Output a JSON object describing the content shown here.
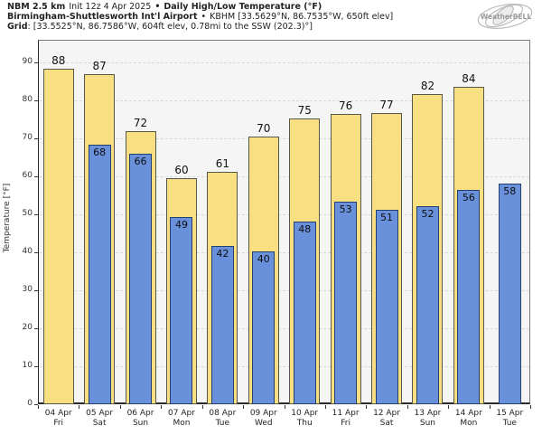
{
  "header": {
    "model": "NBM 2.5 km",
    "init": "Init 12z 4 Apr 2025",
    "bullet": "•",
    "product": "Daily High/Low Temperature (°F)",
    "station_name": "Birmingham-Shuttlesworth Int'l Airport",
    "station_meta": "KBHM [33.5629°N, 86.7535°W, 650ft elev]",
    "grid_label": "Grid",
    "grid_meta": ": [33.5525°N, 86.7586°W, 604ft elev, 0.78mi to the SSW (202.3)°]",
    "logo_text": "WeatherBELL"
  },
  "chart_data": {
    "type": "bar",
    "title": "Daily High/Low Temperature (°F)",
    "ylabel": "Temperature [°F]",
    "ylim": [
      0,
      96
    ],
    "yticks": [
      0,
      10,
      20,
      30,
      40,
      50,
      60,
      70,
      80,
      90
    ],
    "grid": "horizontal-dashed",
    "legend": "none",
    "colors": {
      "high_fill": "#f8df82",
      "high_edge": "#56564a",
      "low_fill": "#6990db",
      "low_edge": "#24406e",
      "plot_background": "#f5f5f5",
      "gridline": "#d9d9d9"
    },
    "categories": [
      "04 Apr Fri",
      "05 Apr Sat",
      "06 Apr Sun",
      "07 Apr Mon",
      "08 Apr Tue",
      "09 Apr Wed",
      "10 Apr Thu",
      "11 Apr Fri",
      "12 Apr Sat",
      "13 Apr Sun",
      "14 Apr Mon",
      "15 Apr Tue"
    ],
    "series": [
      {
        "name": "High",
        "values": [
          88,
          87,
          72,
          60,
          61,
          70,
          75,
          76,
          77,
          82,
          84,
          null
        ]
      },
      {
        "name": "Low",
        "values": [
          null,
          68,
          66,
          49,
          42,
          40,
          48,
          53,
          51,
          52,
          56,
          58
        ]
      }
    ],
    "days": [
      {
        "date": "04 Apr",
        "day": "Fri",
        "high": 88,
        "low": null,
        "high_bar": 88.3,
        "low_bar": null
      },
      {
        "date": "05 Apr",
        "day": "Sat",
        "high": 87,
        "low": 68,
        "high_bar": 87.0,
        "low_bar": 68.3
      },
      {
        "date": "06 Apr",
        "day": "Sun",
        "high": 72,
        "low": 66,
        "high_bar": 72.0,
        "low_bar": 66.0
      },
      {
        "date": "07 Apr",
        "day": "Mon",
        "high": 60,
        "low": 49,
        "high_bar": 59.6,
        "low_bar": 49.3
      },
      {
        "date": "08 Apr",
        "day": "Tue",
        "high": 61,
        "low": 42,
        "high_bar": 61.3,
        "low_bar": 41.7
      },
      {
        "date": "09 Apr",
        "day": "Wed",
        "high": 70,
        "low": 40,
        "high_bar": 70.4,
        "low_bar": 40.3
      },
      {
        "date": "10 Apr",
        "day": "Thu",
        "high": 75,
        "low": 48,
        "high_bar": 75.3,
        "low_bar": 48.1
      },
      {
        "date": "11 Apr",
        "day": "Fri",
        "high": 76,
        "low": 53,
        "high_bar": 76.5,
        "low_bar": 53.3
      },
      {
        "date": "12 Apr",
        "day": "Sat",
        "high": 77,
        "low": 51,
        "high_bar": 76.6,
        "low_bar": 51.3
      },
      {
        "date": "13 Apr",
        "day": "Sun",
        "high": 82,
        "low": 52,
        "high_bar": 81.8,
        "low_bar": 52.2
      },
      {
        "date": "14 Apr",
        "day": "Mon",
        "high": 84,
        "low": 56,
        "high_bar": 83.5,
        "low_bar": 56.4
      },
      {
        "date": "15 Apr",
        "day": "Tue",
        "high": null,
        "low": 58,
        "high_bar": null,
        "low_bar": 58.1
      }
    ]
  }
}
